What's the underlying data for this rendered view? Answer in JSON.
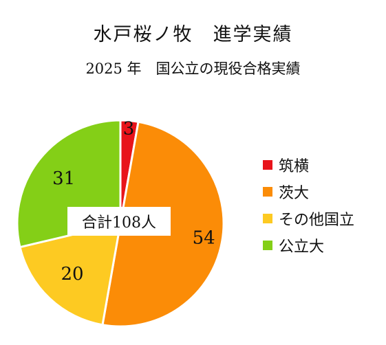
{
  "chart_data": {
    "type": "pie",
    "title": "水戸桜ノ牧　進学実績",
    "subtitle": "2025 年　国公立の現役合格実績",
    "categories": [
      "筑横",
      "茨大",
      "その他国立",
      "公立大"
    ],
    "values": [
      3,
      54,
      20,
      31
    ],
    "colors": [
      "#e8141b",
      "#fb8c07",
      "#fdca22",
      "#84cf17"
    ],
    "total_label": "合計108人",
    "legend_position": "right"
  }
}
